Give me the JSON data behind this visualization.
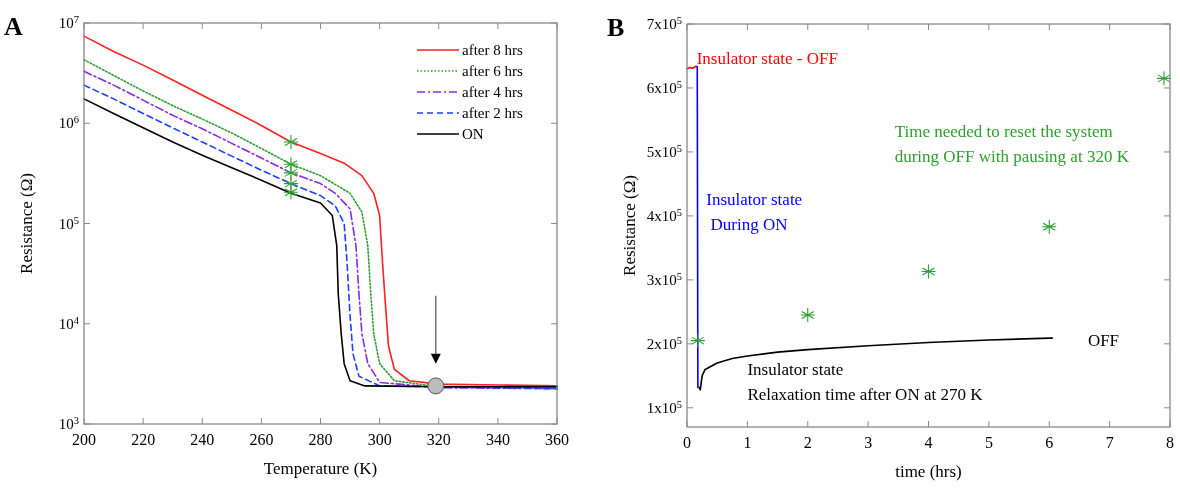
{
  "chart_data": [
    {
      "type": "line",
      "title": "A",
      "xlabel": "Temperature (K)",
      "ylabel": "Resistance (Ω)",
      "log": "y",
      "legend": "top right",
      "xlim": [
        200,
        360
      ],
      "xticks": [
        200,
        220,
        240,
        260,
        280,
        300,
        320,
        340,
        360
      ],
      "ylim": [
        1000,
        10000000
      ],
      "yticks": [
        {
          "value": 1000,
          "label": "10$^{3}$"
        },
        {
          "value": 10000,
          "label": "10$^{4}$"
        },
        {
          "value": 100000,
          "label": "10$^{5}$"
        },
        {
          "value": 1000000,
          "label": "10$^{6}$"
        },
        {
          "value": 10000000,
          "label": "10$^{7}$"
        }
      ],
      "series": [
        {
          "name": "after 8 hrs",
          "color": "#ff2020",
          "line_style": "solid",
          "x": [
            200,
            210,
            220,
            230,
            240,
            250,
            260,
            270,
            280,
            288,
            294,
            298,
            300,
            301,
            302,
            303,
            305,
            310,
            320,
            340,
            360
          ],
          "values": [
            7400000,
            5200000,
            3800000,
            2700000,
            1900000,
            1350000,
            950000,
            650000,
            500000,
            400000,
            300000,
            200000,
            120000,
            40000,
            15000,
            6000,
            3500,
            2700,
            2500,
            2450,
            2400
          ]
        },
        {
          "name": "after 6 hrs",
          "color": "#2e9e2e",
          "line_style": "dotted",
          "x": [
            200,
            210,
            220,
            230,
            240,
            250,
            260,
            270,
            280,
            290,
            294,
            296,
            297,
            298,
            300,
            305,
            320,
            360
          ],
          "values": [
            4300000,
            3000000,
            2100000,
            1500000,
            1100000,
            800000,
            560000,
            390000,
            300000,
            200000,
            130000,
            60000,
            20000,
            8000,
            4000,
            2700,
            2350,
            2300
          ]
        },
        {
          "name": "after 4 hrs",
          "color": "#8a2be2",
          "line_style": "dashdot",
          "x": [
            200,
            210,
            220,
            230,
            240,
            250,
            260,
            270,
            280,
            285,
            290,
            292,
            293,
            294,
            296,
            300,
            320,
            360
          ],
          "values": [
            3300000,
            2400000,
            1700000,
            1200000,
            880000,
            630000,
            450000,
            320000,
            250000,
            200000,
            140000,
            60000,
            20000,
            8000,
            4000,
            2600,
            2300,
            2250
          ]
        },
        {
          "name": "after 2 hrs",
          "color": "#1f3fff",
          "line_style": "dashed",
          "x": [
            200,
            210,
            220,
            230,
            240,
            250,
            260,
            270,
            280,
            285,
            288,
            289,
            290,
            291,
            293,
            300,
            360
          ],
          "values": [
            2400000,
            1750000,
            1250000,
            900000,
            650000,
            470000,
            340000,
            250000,
            190000,
            150000,
            100000,
            40000,
            12000,
            5000,
            3000,
            2400,
            2250
          ]
        },
        {
          "name": "ON",
          "color": "#000000",
          "line_style": "solid",
          "x": [
            200,
            210,
            220,
            230,
            240,
            250,
            260,
            270,
            280,
            284,
            285.5,
            286,
            287,
            288,
            290,
            295,
            320,
            360
          ],
          "values": [
            1750000,
            1250000,
            900000,
            650000,
            480000,
            360000,
            270000,
            200000,
            160000,
            120000,
            60000,
            20000,
            8000,
            4000,
            2700,
            2400,
            2350,
            2350
          ]
        },
        {
          "type": "scatter",
          "marker": "cross",
          "color": "#2e9e2e",
          "x": [
            270,
            270,
            270,
            270,
            270
          ],
          "values": [
            650000,
            390000,
            320000,
            250000,
            205000
          ]
        },
        {
          "type": "scatter",
          "marker": "circle",
          "color": "#bbbbbb",
          "x": [
            319
          ],
          "values": [
            2400
          ]
        }
      ]
    },
    {
      "type": "line",
      "title": "B",
      "xlabel": "time (hrs)",
      "ylabel": "Resistance (Ω)",
      "legend": false,
      "xlim": [
        0,
        8
      ],
      "xticks": [
        0,
        1,
        2,
        3,
        4,
        5,
        6,
        7,
        8
      ],
      "ylim": [
        70000,
        700000
      ],
      "yticks": [
        {
          "value": 100000,
          "label": "1x10$^{5}$"
        },
        {
          "value": 200000,
          "label": "2x10$^{5}$"
        },
        {
          "value": 300000,
          "label": "3x10$^{5}$"
        },
        {
          "value": 400000,
          "label": "4x10$^{5}$"
        },
        {
          "value": 500000,
          "label": "5x10$^{5}$"
        },
        {
          "value": 600000,
          "label": "6x10$^{5}$"
        },
        {
          "value": 700000,
          "label": "7x10$^{5}$"
        }
      ],
      "annotations": [
        "Insulator state - OFF",
        "Insulator state\n During ON",
        "Time needed to reset the system\nduring OFF with pausing at 320 K",
        "OFF",
        "Insulator state\nRelaxation time after ON at 270 K"
      ],
      "series": [
        {
          "color": "#ff0000",
          "line_style": "solid",
          "x": [
            0,
            0.05,
            0.1,
            0.15,
            0.17
          ],
          "values": [
            630000,
            632000,
            631000,
            634000,
            633000
          ]
        },
        {
          "color": "#0000ff",
          "line_style": "solid",
          "x": [
            0.17,
            0.18
          ],
          "values": [
            633000,
            132000
          ]
        },
        {
          "color": "#000000",
          "line_style": "solid",
          "x": [
            0.2,
            0.22,
            0.25,
            0.3,
            0.5,
            0.75,
            1,
            1.5,
            2,
            3,
            4,
            5,
            6,
            6.05
          ],
          "values": [
            132000,
            128000,
            150000,
            160000,
            170000,
            177000,
            181000,
            187000,
            191000,
            197000,
            202000,
            206000,
            209000,
            209000
          ]
        },
        {
          "type": "scatter",
          "marker": "cross",
          "color": "#2e9e2e",
          "x": [
            0.18,
            2,
            4,
            6,
            7.9
          ],
          "values": [
            205000,
            245000,
            313000,
            383000,
            615000
          ]
        }
      ]
    }
  ]
}
